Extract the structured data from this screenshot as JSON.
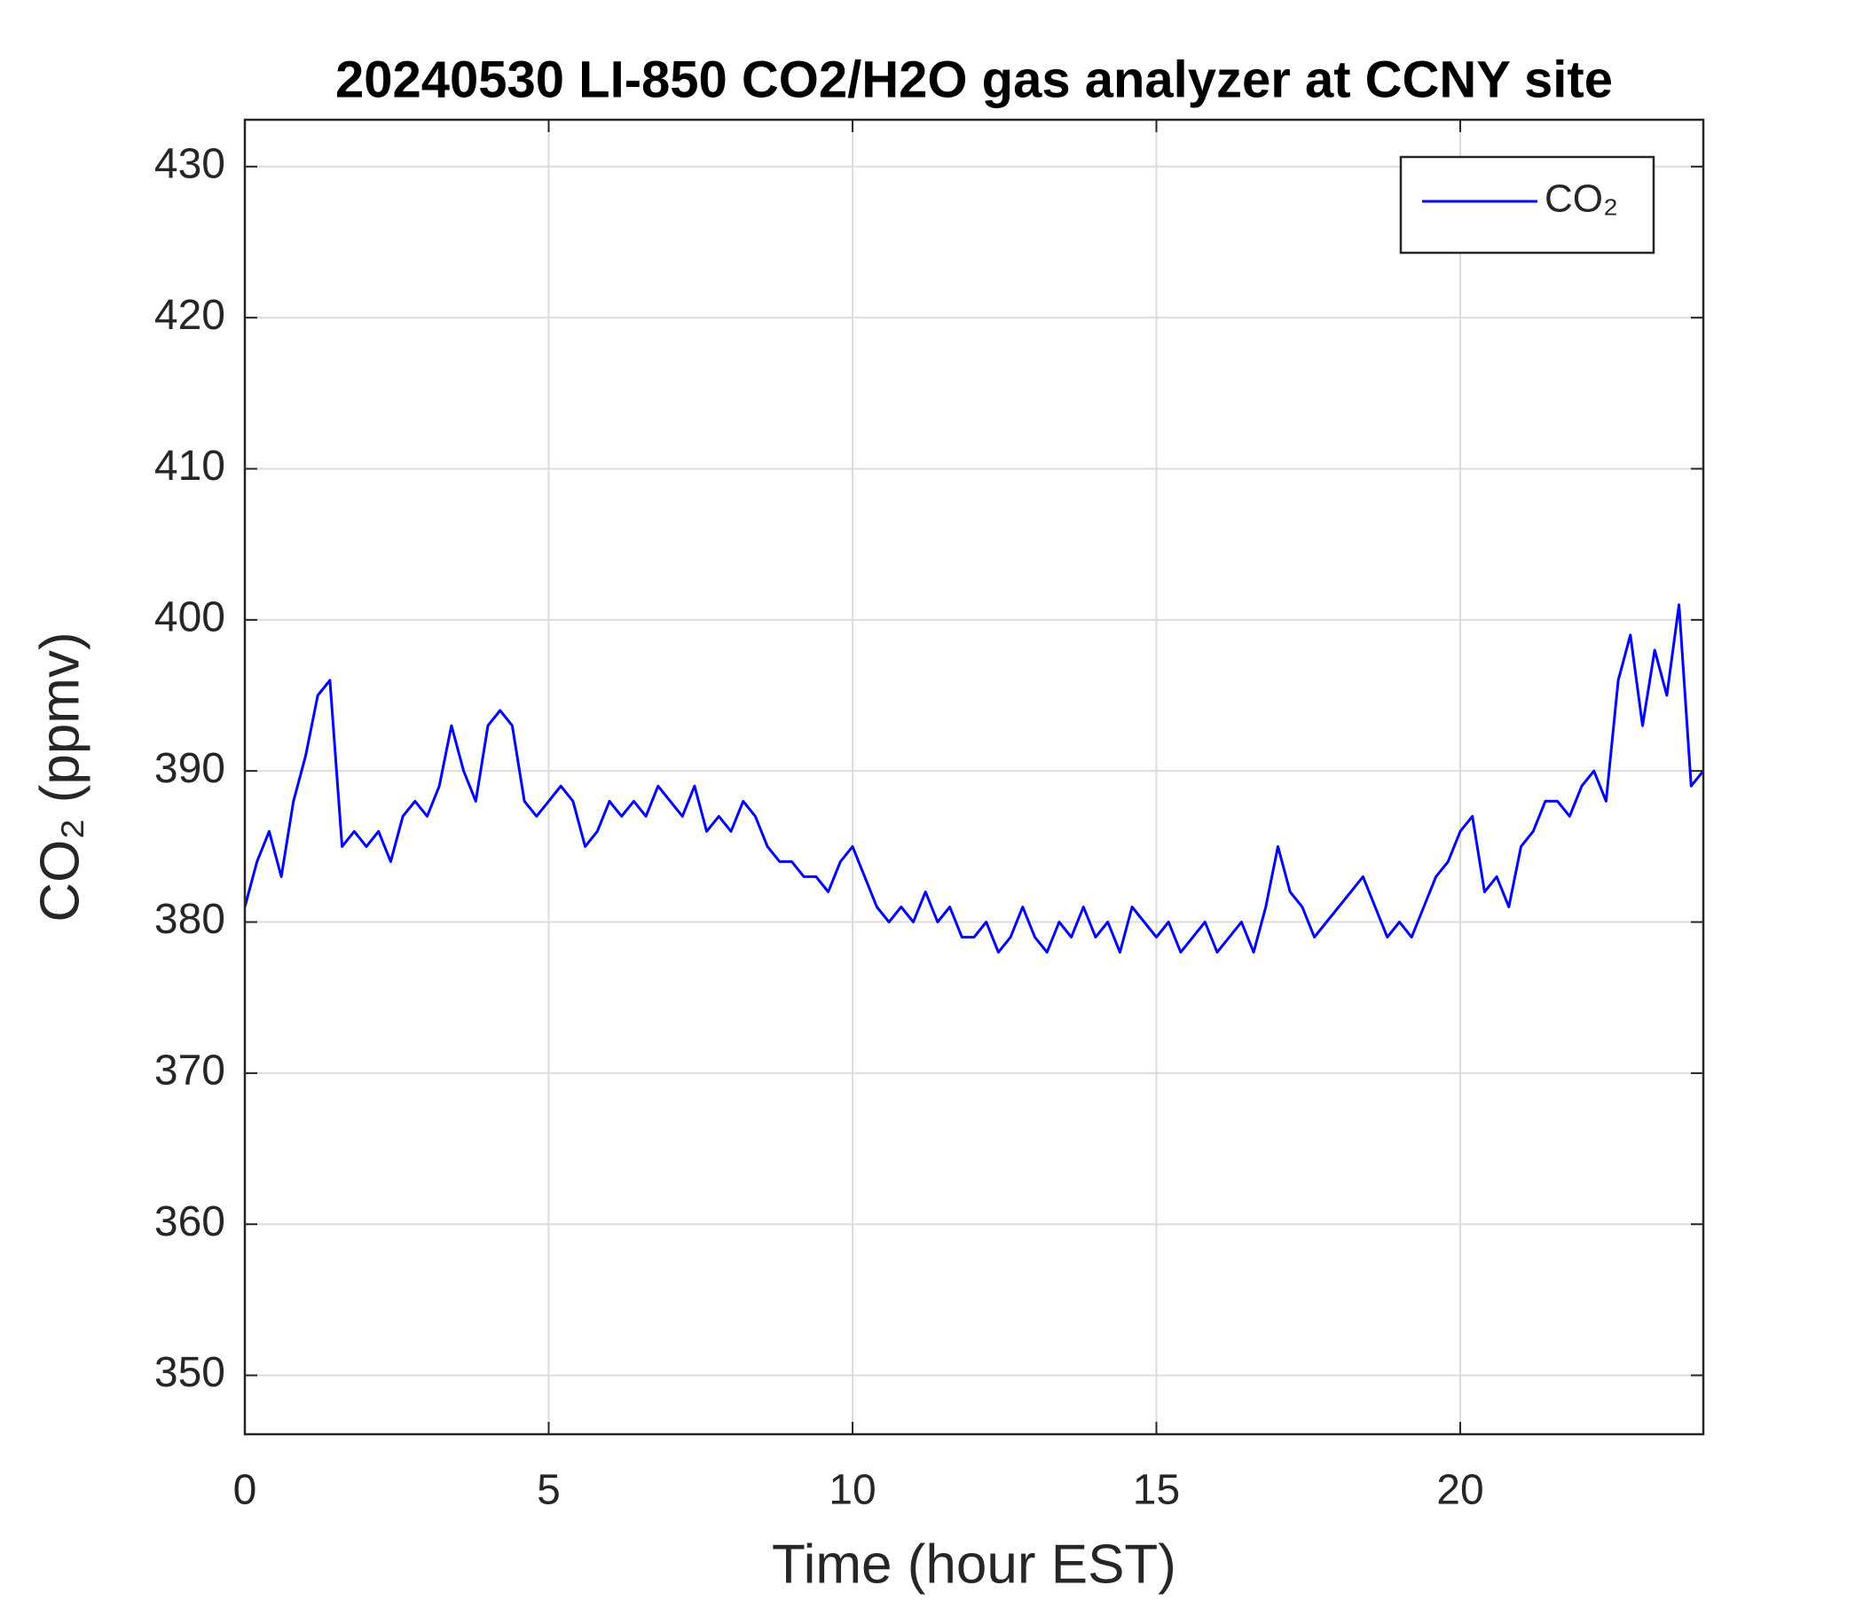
{
  "chart_data": {
    "type": "line",
    "title": "20240530 LI-850 CO2/H2O gas analyzer at CCNY site",
    "xlabel": "Time (hour EST)",
    "ylabel": "CO₂ (ppmv)",
    "x": [
      0,
      0.2,
      0.4,
      0.6,
      0.8,
      1,
      1.2,
      1.4,
      1.6,
      1.8,
      2,
      2.2,
      2.4,
      2.6,
      2.8,
      3,
      3.2,
      3.4,
      3.6,
      3.8,
      4,
      4.2,
      4.4,
      4.6,
      4.8,
      5,
      5.2,
      5.4,
      5.6,
      5.8,
      6,
      6.2,
      6.4,
      6.6,
      6.8,
      7,
      7.2,
      7.4,
      7.6,
      7.8,
      8,
      8.2,
      8.4,
      8.6,
      8.8,
      9,
      9.2,
      9.4,
      9.6,
      9.8,
      10,
      10.2,
      10.4,
      10.6,
      10.8,
      11,
      11.2,
      11.4,
      11.6,
      11.8,
      12,
      12.2,
      12.4,
      12.6,
      12.8,
      13,
      13.2,
      13.4,
      13.6,
      13.8,
      14,
      14.2,
      14.4,
      14.6,
      14.8,
      15,
      15.2,
      15.4,
      15.6,
      15.8,
      16,
      16.2,
      16.4,
      16.6,
      16.8,
      17,
      17.2,
      17.4,
      17.6,
      17.8,
      18,
      18.2,
      18.4,
      18.6,
      18.8,
      19,
      19.2,
      19.4,
      19.6,
      19.8,
      20,
      20.2,
      20.4,
      20.6,
      20.8,
      21,
      21.2,
      21.4,
      21.6,
      21.8,
      22,
      22.2,
      22.4,
      22.6,
      22.8,
      23,
      23.2,
      23.4,
      23.6,
      23.8,
      24
    ],
    "series": [
      {
        "name": "CO₂",
        "color": "#0000ff",
        "values": [
          381,
          384,
          386,
          383,
          388,
          391,
          395,
          396,
          385,
          386,
          385,
          386,
          384,
          387,
          388,
          387,
          389,
          393,
          390,
          388,
          393,
          394,
          393,
          388,
          387,
          388,
          389,
          388,
          385,
          386,
          388,
          387,
          388,
          387,
          389,
          388,
          387,
          389,
          386,
          387,
          386,
          388,
          387,
          385,
          384,
          384,
          383,
          383,
          382,
          384,
          385,
          383,
          381,
          380,
          381,
          380,
          382,
          380,
          381,
          379,
          379,
          380,
          378,
          379,
          381,
          379,
          378,
          380,
          379,
          381,
          379,
          380,
          378,
          381,
          380,
          379,
          380,
          378,
          379,
          380,
          378,
          379,
          380,
          378,
          381,
          385,
          382,
          381,
          379,
          380,
          381,
          382,
          383,
          381,
          379,
          380,
          379,
          381,
          383,
          384,
          386,
          387,
          382,
          383,
          381,
          385,
          386,
          388,
          388,
          387,
          389,
          390,
          388,
          396,
          399,
          393,
          398,
          395,
          401,
          389,
          390
        ]
      }
    ],
    "xlim": [
      0,
      24
    ],
    "ylim": [
      346.1,
      433.1
    ],
    "xticks": [
      0,
      5,
      10,
      15,
      20
    ],
    "yticks": [
      350,
      360,
      370,
      380,
      390,
      400,
      410,
      420,
      430
    ],
    "grid": true,
    "legend": "upper right"
  }
}
